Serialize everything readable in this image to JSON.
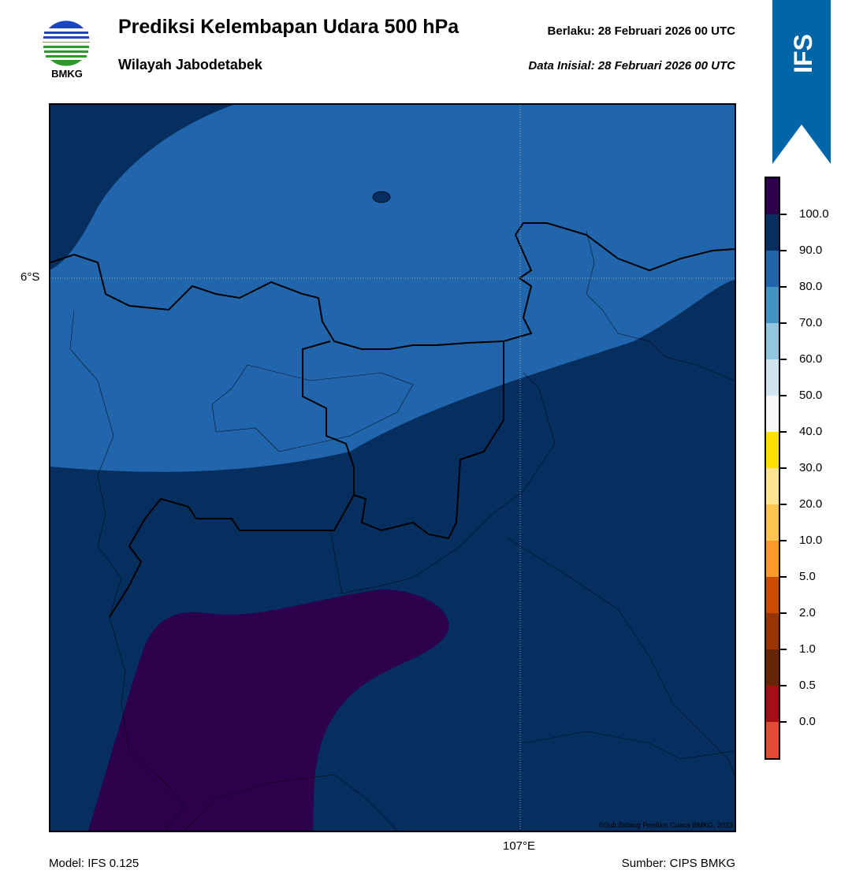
{
  "header": {
    "title": "Prediksi Kelembapan Udara 500 hPa",
    "subtitle": "Wilayah Jabodetabek",
    "valid": "Berlaku:  28 Februari 2026 00 UTC",
    "init": "Data Inisial:  28 Februari 2026 00 UTC",
    "logo_text": "BMKG"
  },
  "ribbon": {
    "label": "IFS"
  },
  "map": {
    "lat_label": "6°S",
    "lon_label": "107°E",
    "credit": "©Sub Bidang Prediksi Cuaca BMKG, 2023",
    "colors": {
      "deep": "#062e5f",
      "blue": "#2166ac",
      "purple": "#2d004b"
    }
  },
  "colorbar": {
    "colors": [
      "#2d004b",
      "#062e5f",
      "#2166ac",
      "#4393c3",
      "#92c5de",
      "#d1e5f0",
      "#f7f7f7",
      "#ffe000",
      "#fee391",
      "#fec44f",
      "#fe9929",
      "#cc4c02",
      "#993404",
      "#662506",
      "#a50f15",
      "#e34a33"
    ],
    "labels": [
      "100.0",
      "90.0",
      "80.0",
      "70.0",
      "60.0",
      "50.0",
      "40.0",
      "30.0",
      "20.0",
      "10.0",
      "5.0",
      "2.0",
      "1.0",
      "0.5",
      "0.0"
    ]
  },
  "footer": {
    "model": "Model: IFS 0.125",
    "source": "Sumber: CIPS BMKG"
  }
}
